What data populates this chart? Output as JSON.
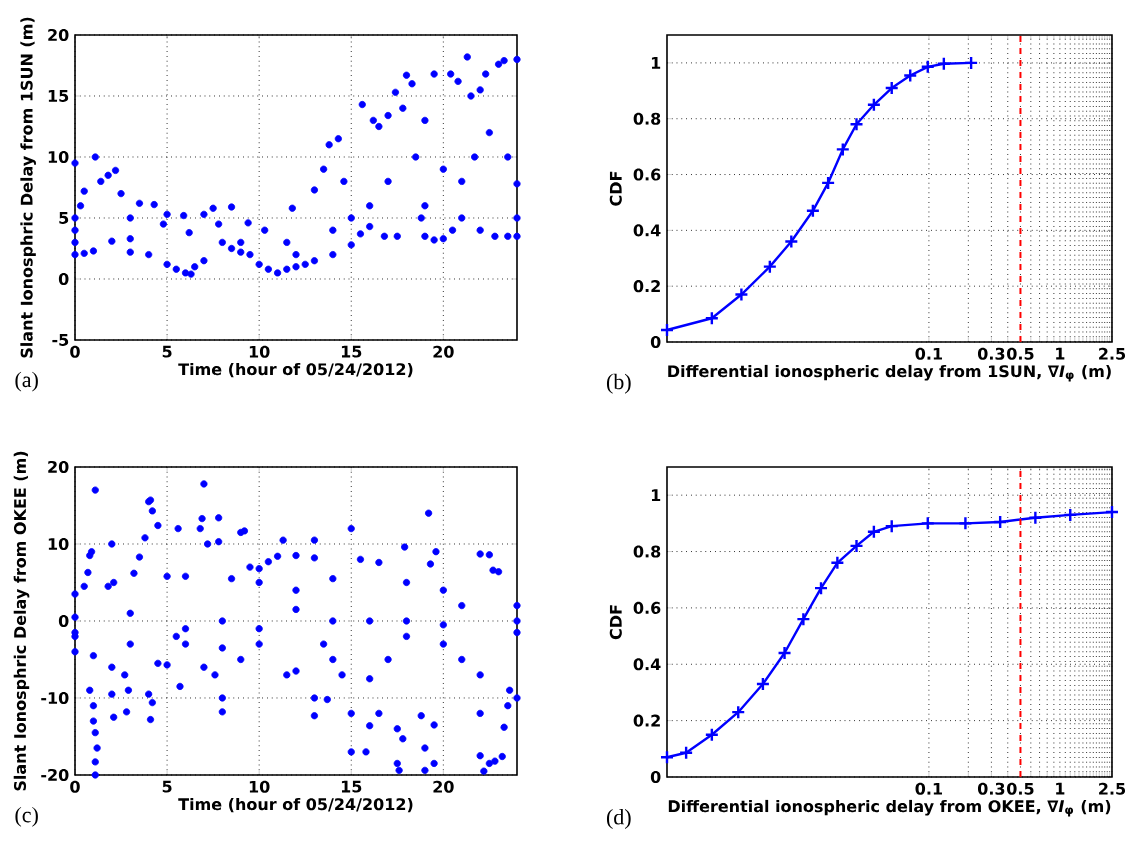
{
  "chart_data": [
    {
      "type": "scatter",
      "xlabel": "Time (hour of 05/24/2012)",
      "ylabel": "Slant Ionosphric Delay from 1SUN (m)",
      "annotations": [
        "(a)"
      ],
      "xlim": [
        0,
        24
      ],
      "ylim": [
        -5,
        20
      ],
      "xticks": [
        0,
        5,
        10,
        15,
        20
      ],
      "yticks": [
        -5,
        0,
        5,
        10,
        15,
        20
      ],
      "grid": true,
      "marker": "circle",
      "series": [
        {
          "color": "#0000ff",
          "x": [
            0,
            0,
            0,
            0,
            0,
            0.5,
            0.3,
            0.5,
            1,
            1.1,
            1.4,
            1.8,
            2.2,
            2.5,
            2,
            3,
            3.5,
            3,
            4,
            4.3,
            4.8,
            5,
            5,
            5.5,
            6,
            6.3,
            6.5,
            6.2,
            5.9,
            7,
            7,
            7.5,
            7.8,
            8.5,
            8,
            8.5,
            9,
            9.4,
            9.5,
            10,
            10.3,
            10.5,
            11,
            11.5,
            11.5,
            12,
            11.8,
            12.5,
            13,
            13,
            13.5,
            13.8,
            14,
            14.3,
            14.6,
            15,
            15.5,
            15.6,
            16,
            16.2,
            16.5,
            16.8,
            17,
            17.4,
            17.5,
            17.8,
            18,
            18.3,
            18.5,
            18.8,
            19,
            19,
            19.5,
            19.5,
            20,
            20.4,
            20.5,
            20.8,
            21,
            21.3,
            21.5,
            21.7,
            22,
            22,
            22.3,
            22.5,
            22.8,
            23,
            23.3,
            23.5,
            23.5,
            24,
            24,
            24,
            24,
            20,
            16,
            17,
            19,
            21,
            3,
            9,
            12,
            14,
            15
          ],
          "values": [
            9.5,
            5,
            4,
            3,
            2,
            7.2,
            6,
            2.1,
            2.3,
            10,
            8,
            8.5,
            8.9,
            7,
            3.1,
            5,
            6.2,
            2.2,
            2,
            6.1,
            4.5,
            5.3,
            1.2,
            0.8,
            0.5,
            0.4,
            1,
            3.8,
            5.2,
            1.5,
            5.3,
            5.8,
            4.5,
            5.9,
            3,
            2.5,
            2.2,
            4.6,
            2,
            1.2,
            4,
            0.8,
            0.5,
            0.8,
            3,
            1,
            5.8,
            1.2,
            7.3,
            1.5,
            9,
            11,
            2,
            11.5,
            8,
            2.8,
            3.7,
            14.3,
            4.3,
            13,
            12.5,
            3.5,
            13.4,
            15.3,
            3.5,
            14,
            16.7,
            16,
            10,
            5,
            3.5,
            13,
            16.8,
            3.2,
            3.3,
            16.8,
            4,
            16.2,
            8,
            18.2,
            15,
            10,
            15.5,
            4,
            16.8,
            12,
            3.5,
            17.6,
            17.9,
            10,
            3.5,
            18,
            3.5,
            5,
            7.8,
            9,
            6,
            8,
            6,
            5,
            3.3,
            3,
            2,
            4,
            5
          ]
        }
      ]
    },
    {
      "type": "line",
      "log": "x",
      "xlabel": "Differential ionospheric delay from 1SUN, ∇*I*$_{φ}$ (m)",
      "ylabel": "CDF",
      "annotations": [
        "(b)"
      ],
      "xlim": [
        0.001,
        2.5
      ],
      "ylim": [
        0,
        1.1
      ],
      "xticks": [
        0.1,
        {
          "value": 0.2,
          "label": null
        },
        0.3,
        {
          "value": 0.4,
          "label": null
        },
        0.5,
        {
          "value": 0.6,
          "label": null
        },
        {
          "value": 0.7,
          "label": null
        },
        {
          "value": 0.8,
          "label": null
        },
        {
          "value": 0.9,
          "label": null
        },
        1,
        {
          "value": 1.1,
          "label": null
        },
        {
          "value": 1.2,
          "label": null
        },
        {
          "value": 1.3,
          "label": null
        },
        {
          "value": 1.4,
          "label": null
        },
        {
          "value": 1.5,
          "label": null
        },
        {
          "value": 1.6,
          "label": null
        },
        {
          "value": 1.7,
          "label": null
        },
        {
          "value": 1.8,
          "label": null
        },
        {
          "value": 1.9,
          "label": null
        },
        {
          "value": 2,
          "label": null
        },
        {
          "value": 2.1,
          "label": null
        },
        {
          "value": 2.2,
          "label": null
        },
        {
          "value": 2.3,
          "label": null
        },
        {
          "value": 2.4,
          "label": null
        },
        2.5
      ],
      "yticks": [
        0,
        0.2,
        0.4,
        0.6,
        0.8,
        1
      ],
      "grid": true,
      "marker": "cross",
      "ref_lines": [
        {
          "axis": "x",
          "value": 0.5,
          "color": "#ff0000",
          "line_style": "dashed"
        }
      ],
      "series": [
        {
          "color": "#0000ff",
          "x": [
            0.001,
            0.0022,
            0.0037,
            0.0061,
            0.0089,
            0.013,
            0.017,
            0.022,
            0.028,
            0.038,
            0.052,
            0.072,
            0.098,
            0.13,
            0.21
          ],
          "values": [
            0.043,
            0.085,
            0.17,
            0.27,
            0.36,
            0.47,
            0.57,
            0.69,
            0.78,
            0.85,
            0.91,
            0.955,
            0.986,
            0.997,
            1
          ]
        }
      ]
    },
    {
      "type": "scatter",
      "xlabel": "Time (hour of 05/24/2012)",
      "ylabel": "Slant Ionosphric Delay from OKEE (m)",
      "annotations": [
        "(c)"
      ],
      "xlim": [
        0,
        24
      ],
      "ylim": [
        -20,
        20
      ],
      "xticks": [
        0,
        5,
        10,
        15,
        20
      ],
      "yticks": [
        -20,
        -10,
        0,
        10,
        20
      ],
      "grid": true,
      "marker": "circle",
      "series": [
        {
          "color": "#0000ff",
          "x": [
            0,
            0,
            0,
            0,
            0,
            0.5,
            0.8,
            0.9,
            0.7,
            1.1,
            1,
            1,
            1.1,
            1.1,
            1.1,
            1.2,
            0.8,
            1,
            2,
            2.1,
            1.8,
            2,
            2.1,
            2,
            2.7,
            2.8,
            2.9,
            3,
            3.2,
            3.5,
            3.8,
            4,
            4.1,
            4.2,
            4.5,
            4,
            4.1,
            4.2,
            4.5,
            5,
            5.5,
            5.6,
            5.7,
            6,
            6,
            6.8,
            6.9,
            7,
            7.2,
            7,
            7.8,
            7.8,
            8,
            8,
            7.6,
            8,
            8.5,
            9,
            9.2,
            9,
            9.5,
            10,
            10,
            10,
            10.5,
            11,
            11.3,
            11.5,
            12,
            12,
            13,
            13,
            13,
            13,
            13.5,
            13.7,
            14,
            14,
            14.5,
            15,
            15,
            15,
            15.8,
            15.5,
            16,
            16,
            16.5,
            16.5,
            17,
            17.5,
            17.5,
            17.6,
            17.8,
            17.9,
            18,
            18,
            18.8,
            19,
            19,
            19.2,
            19.3,
            19.5,
            19.5,
            19.6,
            20,
            20,
            20,
            21,
            21,
            22,
            22.5,
            22,
            22,
            22.2,
            22.5,
            22.7,
            23,
            22.8,
            23.2,
            23.3,
            23.5,
            23.6,
            24,
            24,
            24,
            24,
            12,
            8,
            16,
            3,
            6,
            10,
            14,
            18,
            22,
            5,
            12
          ],
          "values": [
            3.5,
            0.5,
            -1.5,
            -2,
            -4,
            4.5,
            8.5,
            9,
            6.3,
            17,
            -11,
            -13,
            -14.5,
            -18.3,
            -20,
            -16.5,
            -9,
            -4.5,
            10,
            5,
            4.5,
            -9.5,
            -12.5,
            -6,
            -7,
            -11.8,
            -9,
            1,
            6.2,
            8.3,
            10.8,
            15.5,
            15.7,
            14.3,
            12.4,
            -9.5,
            -12.8,
            -10.6,
            -5.5,
            5.8,
            -2,
            12,
            -8.5,
            5.8,
            -1,
            12,
            13.3,
            17.8,
            10,
            -6,
            13.4,
            10.3,
            -10,
            -11.8,
            -7,
            -3.5,
            5.5,
            11.5,
            11.7,
            -5,
            7,
            6.8,
            5,
            -3,
            7.7,
            8.4,
            10.5,
            -7,
            8.5,
            -6.5,
            10.5,
            8.2,
            -12.3,
            -10,
            -3,
            -10.2,
            5.5,
            0,
            -7,
            12,
            -12,
            -17,
            -17,
            8,
            -13.6,
            -7.5,
            7.6,
            -12,
            -5,
            -14,
            -18.5,
            -19.4,
            -15.3,
            9.6,
            5,
            -2,
            -12.3,
            -16.5,
            -19.4,
            14,
            7.4,
            -13.5,
            -18.5,
            9,
            4,
            -0.5,
            -3,
            2,
            -5,
            8.7,
            8.6,
            -12,
            -17.5,
            -19.5,
            -18.5,
            6.6,
            6.4,
            -18.2,
            -17.6,
            -13.8,
            -11,
            -9,
            -10,
            2,
            0,
            -1.5,
            4,
            0,
            0,
            -3,
            -3,
            -1,
            -5,
            0,
            -7,
            -5.7,
            1.5
          ]
        }
      ]
    },
    {
      "type": "line",
      "log": "x",
      "xlabel": "Differential ionospheric delay from OKEE, ∇*I*$_{φ}$ (m)",
      "ylabel": "CDF",
      "annotations": [
        "(d)"
      ],
      "xlim": [
        0.001,
        2.5
      ],
      "ylim": [
        0,
        1.1
      ],
      "xticks": [
        0.1,
        {
          "value": 0.2,
          "label": null
        },
        0.3,
        {
          "value": 0.4,
          "label": null
        },
        0.5,
        {
          "value": 0.6,
          "label": null
        },
        {
          "value": 0.7,
          "label": null
        },
        {
          "value": 0.8,
          "label": null
        },
        {
          "value": 0.9,
          "label": null
        },
        1,
        {
          "value": 1.1,
          "label": null
        },
        {
          "value": 1.2,
          "label": null
        },
        {
          "value": 1.3,
          "label": null
        },
        {
          "value": 1.4,
          "label": null
        },
        {
          "value": 1.5,
          "label": null
        },
        {
          "value": 1.6,
          "label": null
        },
        {
          "value": 1.7,
          "label": null
        },
        {
          "value": 1.8,
          "label": null
        },
        {
          "value": 1.9,
          "label": null
        },
        {
          "value": 2,
          "label": null
        },
        {
          "value": 2.1,
          "label": null
        },
        {
          "value": 2.2,
          "label": null
        },
        {
          "value": 2.3,
          "label": null
        },
        {
          "value": 2.4,
          "label": null
        },
        2.5
      ],
      "yticks": [
        0,
        0.2,
        0.4,
        0.6,
        0.8,
        1
      ],
      "grid": true,
      "marker": "cross",
      "ref_lines": [
        {
          "axis": "x",
          "value": 0.5,
          "color": "#ff0000",
          "line_style": "dashed"
        }
      ],
      "series": [
        {
          "color": "#0000ff",
          "x": [
            0.001,
            0.0014,
            0.0022,
            0.0035,
            0.0054,
            0.0079,
            0.011,
            0.015,
            0.02,
            0.028,
            0.038,
            0.052,
            0.098,
            0.19,
            0.35,
            0.65,
            1.2,
            2.5
          ],
          "values": [
            0.07,
            0.086,
            0.15,
            0.23,
            0.33,
            0.44,
            0.56,
            0.67,
            0.76,
            0.82,
            0.87,
            0.89,
            0.9,
            0.9,
            0.905,
            0.92,
            0.93,
            0.94
          ]
        }
      ]
    }
  ]
}
